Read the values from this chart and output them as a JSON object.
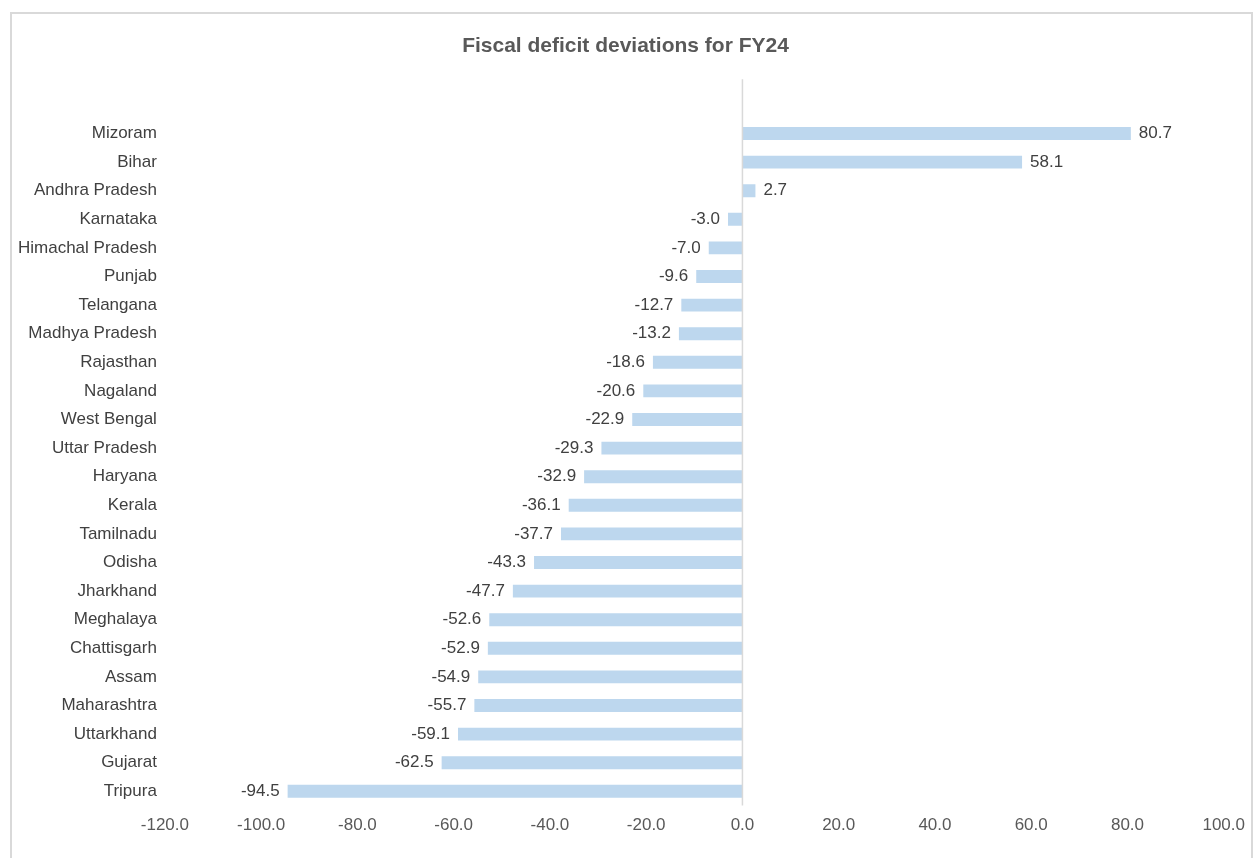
{
  "chart_data": {
    "type": "bar",
    "orientation": "horizontal",
    "title": "Fiscal deficit deviations for FY24",
    "categories": [
      "Mizoram",
      "Bihar",
      "Andhra Pradesh",
      "Karnataka",
      "Himachal Pradesh",
      "Punjab",
      "Telangana",
      "Madhya Pradesh",
      "Rajasthan",
      "Nagaland",
      "West Bengal",
      "Uttar Pradesh",
      "Haryana",
      "Kerala",
      "Tamilnadu",
      "Odisha",
      "Jharkhand",
      "Meghalaya",
      "Chattisgarh",
      "Assam",
      "Maharashtra",
      "Uttarkhand",
      "Gujarat",
      "Tripura"
    ],
    "values": [
      80.7,
      58.1,
      2.7,
      -3.0,
      -7.0,
      -9.6,
      -12.7,
      -13.2,
      -18.6,
      -20.6,
      -22.9,
      -29.3,
      -32.9,
      -36.1,
      -37.7,
      -43.3,
      -47.7,
      -52.6,
      -52.9,
      -54.9,
      -55.7,
      -59.1,
      -62.5,
      -94.5
    ],
    "value_labels": [
      "80.7",
      "58.1",
      "2.7",
      "-3.0",
      "-7.0",
      "-9.6",
      "-12.7",
      "-13.2",
      "-18.6",
      "-20.6",
      "-22.9",
      "-29.3",
      "-32.9",
      "-36.1",
      "-37.7",
      "-43.3",
      "-47.7",
      "-52.6",
      "-52.9",
      "-54.9",
      "-55.7",
      "-59.1",
      "-62.5",
      "-94.5"
    ],
    "color": "#bdd7ee",
    "xlim": [
      -120,
      100
    ],
    "xticks": [
      {
        "value": -120,
        "label": "-120.0"
      },
      {
        "value": -100,
        "label": "-100.0"
      },
      {
        "value": -80,
        "label": "-80.0"
      },
      {
        "value": -60,
        "label": "-60.0"
      },
      {
        "value": -40,
        "label": "-40.0"
      },
      {
        "value": -20,
        "label": "-20.0"
      },
      {
        "value": 0,
        "label": "0.0"
      },
      {
        "value": 20,
        "label": "20.0"
      },
      {
        "value": 40,
        "label": "40.0"
      },
      {
        "value": 60,
        "label": "60.0"
      },
      {
        "value": 80,
        "label": "80.0"
      },
      {
        "value": 100,
        "label": "100.0"
      }
    ],
    "legend": false
  }
}
